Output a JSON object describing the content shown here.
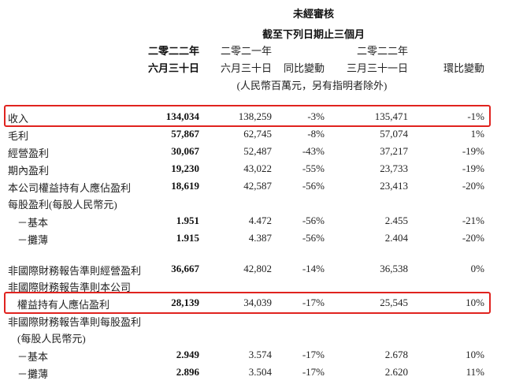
{
  "header": {
    "unaudited": "未經審核",
    "period": "截至下列日期止三個月",
    "columns": [
      {
        "year": "二零二二年",
        "date": "六月三十日"
      },
      {
        "year": "二零二一年",
        "date": "六月三十日"
      },
      {
        "year": "",
        "date": "同比變動"
      },
      {
        "year": "二零二二年",
        "date": "三月三十一日"
      },
      {
        "year": "",
        "date": "環比變動"
      }
    ],
    "unit_note": "(人民幣百萬元，另有指明者除外)"
  },
  "highlight_color": "#e0231f",
  "rows": [
    {
      "label": "收入",
      "values": [
        "134,034",
        "138,259",
        "-3%",
        "135,471",
        "-1%"
      ],
      "highlighted": true
    },
    {
      "label": "毛利",
      "values": [
        "57,867",
        "62,745",
        "-8%",
        "57,074",
        "1%"
      ]
    },
    {
      "label": "經營盈利",
      "values": [
        "30,067",
        "52,487",
        "-43%",
        "37,217",
        "-19%"
      ]
    },
    {
      "label": "期內盈利",
      "values": [
        "19,230",
        "43,022",
        "-55%",
        "23,733",
        "-19%"
      ]
    },
    {
      "label": "本公司權益持有人應佔盈利",
      "values": [
        "18,619",
        "42,587",
        "-56%",
        "23,413",
        "-20%"
      ]
    },
    {
      "label": "每股盈利(每股人民幣元)",
      "values": [
        "",
        "",
        "",
        "",
        ""
      ]
    },
    {
      "label": "－基本",
      "values": [
        "1.951",
        "4.472",
        "-56%",
        "2.455",
        "-21%"
      ],
      "indent": true
    },
    {
      "label": "－攤薄",
      "values": [
        "1.915",
        "4.387",
        "-56%",
        "2.404",
        "-20%"
      ],
      "indent": true
    },
    {
      "label": "非國際財務報告準則經營盈利",
      "values": [
        "36,667",
        "42,802",
        "-14%",
        "36,538",
        "0%"
      ]
    },
    {
      "label": "非國際財務報告準則本公司",
      "values": [
        "",
        "",
        "",
        "",
        ""
      ]
    },
    {
      "label": "權益持有人應佔盈利",
      "values": [
        "28,139",
        "34,039",
        "-17%",
        "25,545",
        "10%"
      ],
      "indent": true,
      "highlighted": true
    },
    {
      "label": "非國際財務報告準則每股盈利",
      "values": [
        "",
        "",
        "",
        "",
        ""
      ]
    },
    {
      "label": "(每股人民幣元)",
      "values": [
        "",
        "",
        "",
        "",
        ""
      ],
      "indent": true
    },
    {
      "label": "－基本",
      "values": [
        "2.949",
        "3.574",
        "-17%",
        "2.678",
        "10%"
      ],
      "indent": true
    },
    {
      "label": "－攤薄",
      "values": [
        "2.896",
        "3.504",
        "-17%",
        "2.620",
        "11%"
      ],
      "indent": true
    }
  ]
}
